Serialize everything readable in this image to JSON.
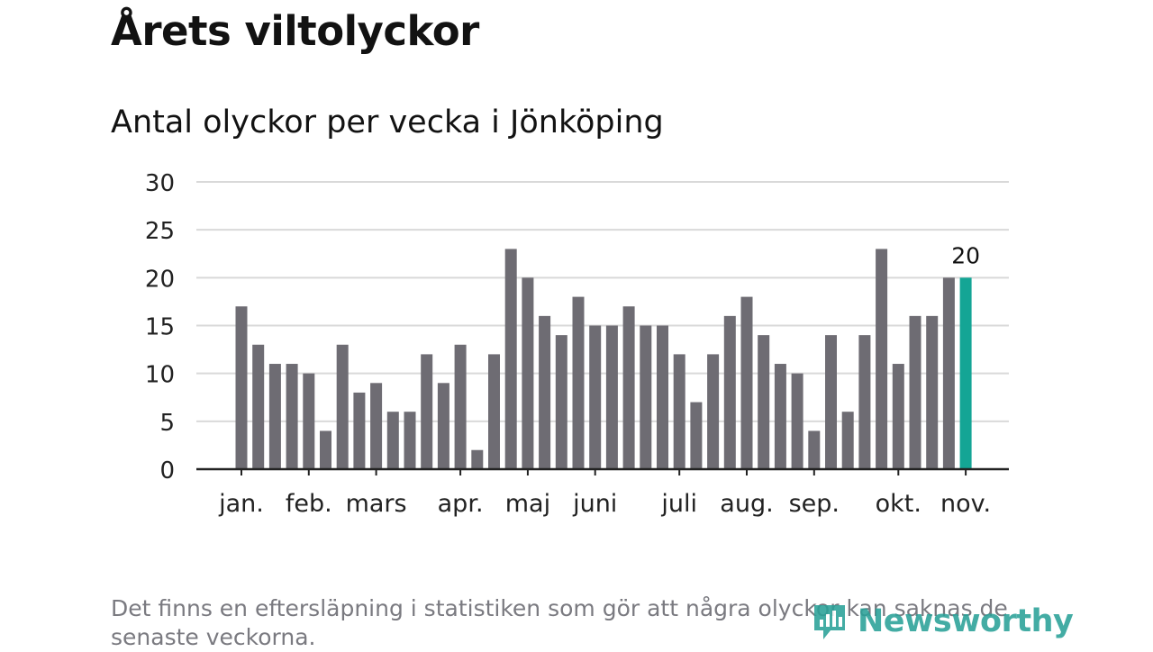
{
  "header": {
    "title": "Årets viltolyckor",
    "subtitle": "Antal olyckor per vecka i Jönköping"
  },
  "chart_data": {
    "type": "bar",
    "title": "Årets viltolyckor",
    "subtitle": "Antal olyckor per vecka i Jönköping",
    "xlabel": "",
    "ylabel": "",
    "ylim": [
      0,
      30
    ],
    "yticks": [
      0,
      5,
      10,
      15,
      20,
      25,
      30
    ],
    "grid": true,
    "values": [
      17,
      13,
      11,
      11,
      10,
      4,
      13,
      8,
      9,
      6,
      6,
      12,
      9,
      13,
      2,
      12,
      23,
      20,
      16,
      14,
      18,
      15,
      15,
      17,
      15,
      15,
      12,
      7,
      12,
      16,
      18,
      14,
      11,
      10,
      4,
      14,
      6,
      14,
      23,
      11,
      16,
      16,
      20,
      20
    ],
    "month_labels": [
      {
        "label": "jan.",
        "week_index": 0
      },
      {
        "label": "feb.",
        "week_index": 4
      },
      {
        "label": "mars",
        "week_index": 8
      },
      {
        "label": "apr.",
        "week_index": 13
      },
      {
        "label": "maj",
        "week_index": 17
      },
      {
        "label": "juni",
        "week_index": 21
      },
      {
        "label": "juli",
        "week_index": 26
      },
      {
        "label": "aug.",
        "week_index": 30
      },
      {
        "label": "sep.",
        "week_index": 34
      },
      {
        "label": "okt.",
        "week_index": 39
      },
      {
        "label": "nov.",
        "week_index": 43
      }
    ],
    "highlight_index": 43,
    "highlight_label": "20",
    "colors": {
      "bar": "#6e6c73",
      "highlight": "#14a595",
      "grid": "#d9d9d9",
      "axis": "#222222",
      "tick_text": "#222222"
    }
  },
  "footer": {
    "note": "Det finns en eftersläpning i statistiken som gör att några olyckor kan saknas de senaste veckorna.",
    "brand": "Newsworthy",
    "brand_icon": "bar-chart-icon",
    "brand_color": "#2aa198"
  }
}
